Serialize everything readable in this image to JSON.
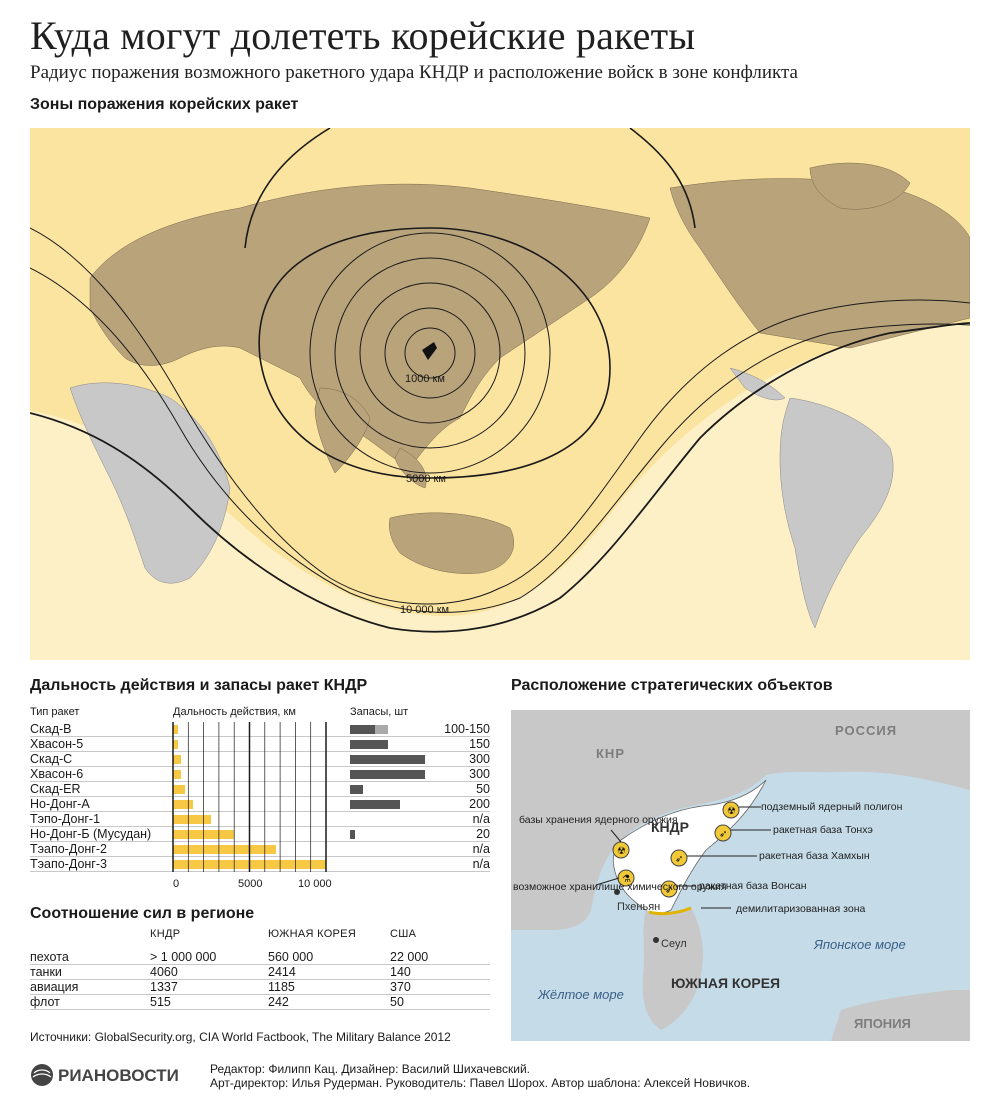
{
  "title": "Куда могут долететь корейские ракеты",
  "subtitle": "Радиус поражения возможного ракетного удара КНДР и расположение войск в зоне конфликта",
  "map_section": {
    "title": "Зоны поражения корейских ракет",
    "labels": {
      "r1000": "1000 км",
      "r5000": "5000 км",
      "r10000": "10 000 км"
    }
  },
  "range_section": {
    "title": "Дальность действия и запасы ракет КНДР",
    "col_type": "Тип ракет",
    "col_range": "Дальность действия, км",
    "col_stock": "Запасы, шт",
    "axis": [
      "0",
      "5000",
      "10 000"
    ],
    "rows": [
      {
        "name": "Скад-B",
        "range": 300,
        "stock_text": "100-150",
        "stock_min": 100,
        "stock_max": 150
      },
      {
        "name": "Хвасон-5",
        "range": 320,
        "stock_text": "150",
        "stock_min": 150,
        "stock_max": 150
      },
      {
        "name": "Скад-С",
        "range": 500,
        "stock_text": "300",
        "stock_min": 300,
        "stock_max": 300
      },
      {
        "name": "Хвасон-6",
        "range": 500,
        "stock_text": "300",
        "stock_min": 300,
        "stock_max": 300
      },
      {
        "name": "Скад-ER",
        "range": 800,
        "stock_text": "50",
        "stock_min": 50,
        "stock_max": 50
      },
      {
        "name": "Но-Донг-А",
        "range": 1300,
        "stock_text": "200",
        "stock_min": 200,
        "stock_max": 200
      },
      {
        "name": "Тэпо-Донг-1",
        "range": 2500,
        "stock_text": "n/a",
        "stock_min": 0,
        "stock_max": 0
      },
      {
        "name": "Но-Донг-Б (Мусудан)",
        "range": 4000,
        "stock_text": "20",
        "stock_min": 20,
        "stock_max": 20
      },
      {
        "name": "Тэапо-Донг-2",
        "range": 6700,
        "stock_text": "n/a",
        "stock_min": 0,
        "stock_max": 0
      },
      {
        "name": "Тэапо-Донг-3",
        "range": 10000,
        "stock_text": "n/a",
        "stock_min": 0,
        "stock_max": 0
      }
    ]
  },
  "forces_section": {
    "title": "Соотношение сил в регионе",
    "columns": [
      "КНДР",
      "ЮЖНАЯ КОРЕЯ",
      "США"
    ],
    "rows": [
      {
        "label": "пехота",
        "v": [
          "> 1 000 000",
          "560 000",
          "22 000"
        ]
      },
      {
        "label": "танки",
        "v": [
          "4060",
          "2414",
          "140"
        ]
      },
      {
        "label": "авиация",
        "v": [
          "1337",
          "1185",
          "370"
        ]
      },
      {
        "label": "флот",
        "v": [
          "515",
          "242",
          "50"
        ]
      }
    ]
  },
  "sources": "Источники: GlobalSecurity.org, CIA World Factbook, The Military Balance 2012",
  "strategic_section": {
    "title": "Расположение стратегических объектов",
    "labels": {
      "knr": "КНР",
      "russia": "РОССИЯ",
      "kndr": "КНДР",
      "south_korea": "ЮЖНАЯ КОРЕЯ",
      "japan": "ЯПОНИЯ",
      "sea_japan": "Японское море",
      "sea_yellow": "Жёлтое море",
      "pyongyang": "Пхеньян",
      "seoul": "Сеул",
      "nuclear_storage": "базы хранения ядерного оружия",
      "chem_storage": "возможное хранилище химического оружия",
      "test_site": "подземный ядерный полигон",
      "base_tonghae": "ракетная база Тонхэ",
      "base_hamhung": "ракетная база Хамхын",
      "base_wonsan": "ракетная база Вонсан",
      "dmz": "демилитаризованная зона"
    }
  },
  "footer": {
    "logo": "РИАНОВОСТИ",
    "credits_1": "Редактор: Филипп Кац. Дизайнер: Василий Шихачевский.",
    "credits_2": "Арт-директор: Илья Рудерман. Руководитель: Павел Шорох. Автор шаблона: Алексей Новичков."
  },
  "colors": {
    "zone": "#fbe3a0",
    "zone_light": "#fdf0c7",
    "land_in_zone": "#b9a37a",
    "land_out": "#c8c8c8",
    "bar_range": "#f7c844",
    "bar_stock": "#555555",
    "sea": "#c5dbe7"
  }
}
